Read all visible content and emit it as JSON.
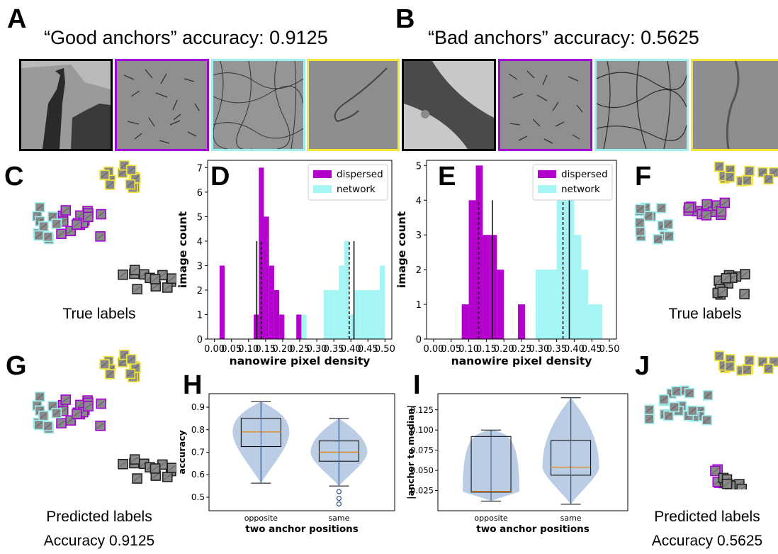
{
  "panels": {
    "A": {
      "letter": "A",
      "title": "“Good anchors” accuracy: 0.9125"
    },
    "B": {
      "letter": "B",
      "title": "“Bad anchors” accuracy: 0.5625"
    },
    "C": {
      "letter": "C",
      "caption": "True labels"
    },
    "F": {
      "letter": "F",
      "caption": "True labels"
    },
    "G": {
      "letter": "G",
      "caption": "Predicted labels",
      "caption2": "Accuracy 0.9125"
    },
    "J": {
      "letter": "J",
      "caption": "Predicted labels",
      "caption2": "Accuracy 0.5625"
    },
    "D": {
      "letter": "D"
    },
    "E": {
      "letter": "E"
    },
    "H": {
      "letter": "H"
    },
    "I": {
      "letter": "I"
    }
  },
  "colors": {
    "dispersed": "#b300cc",
    "network": "#a6f5f5",
    "black": "#000000",
    "purple_border": "#a300d8",
    "cyan_border": "#9ef0f0",
    "yellow_border": "#f3e63a",
    "violin": "#b4c6e2",
    "median": "#e08a1e"
  },
  "chart_data": [
    {
      "id": "D",
      "type": "bar",
      "xlabel": "nanowire pixel density",
      "ylabel": "image count",
      "xlim": [
        -0.02,
        0.52
      ],
      "ylim": [
        0,
        7.3
      ],
      "xticks": [
        "0.00",
        "0.05",
        "0.10",
        "0.15",
        "0.20",
        "0.25",
        "0.30",
        "0.35",
        "0.40",
        "0.45",
        "0.50"
      ],
      "xtick_values": [
        0,
        0.05,
        0.1,
        0.15,
        0.2,
        0.25,
        0.3,
        0.35,
        0.4,
        0.45,
        0.5
      ],
      "yticks": [
        "0",
        "1",
        "2",
        "3",
        "4",
        "5",
        "6",
        "7"
      ],
      "legend": "top-right",
      "series": [
        {
          "name": "dispersed",
          "bins": [
            [
              0.015,
              0.03,
              3
            ],
            [
              0.115,
              0.13,
              1
            ],
            [
              0.13,
              0.145,
              7
            ],
            [
              0.145,
              0.16,
              5
            ],
            [
              0.16,
              0.175,
              3
            ],
            [
              0.175,
              0.19,
              2
            ],
            [
              0.19,
              0.205,
              1
            ],
            [
              0.24,
              0.255,
              1
            ]
          ]
        },
        {
          "name": "network",
          "bins": [
            [
              0.255,
              0.27,
              1
            ],
            [
              0.32,
              0.335,
              2
            ],
            [
              0.335,
              0.35,
              2
            ],
            [
              0.35,
              0.365,
              2
            ],
            [
              0.365,
              0.38,
              3
            ],
            [
              0.38,
              0.395,
              4
            ],
            [
              0.395,
              0.41,
              1
            ],
            [
              0.41,
              0.425,
              2
            ],
            [
              0.425,
              0.44,
              2
            ],
            [
              0.44,
              0.455,
              2
            ],
            [
              0.455,
              0.47,
              2
            ],
            [
              0.47,
              0.485,
              2
            ],
            [
              0.485,
              0.5,
              3
            ]
          ]
        }
      ],
      "vlines": [
        {
          "x": 0.124,
          "y": 4,
          "style": "solid"
        },
        {
          "x": 0.137,
          "y": 4,
          "style": "dashed"
        },
        {
          "x": 0.395,
          "y": 4,
          "style": "dashed"
        },
        {
          "x": 0.409,
          "y": 4,
          "style": "solid"
        }
      ]
    },
    {
      "id": "E",
      "type": "bar",
      "xlabel": "nanowire pixel density",
      "ylabel": "image count",
      "xlim": [
        -0.02,
        0.52
      ],
      "ylim": [
        0,
        5.15
      ],
      "xticks": [
        "0.00",
        "0.05",
        "0.10",
        "0.15",
        "0.20",
        "0.25",
        "0.30",
        "0.35",
        "0.40",
        "0.45",
        "0.50"
      ],
      "xtick_values": [
        0,
        0.05,
        0.1,
        0.15,
        0.2,
        0.25,
        0.3,
        0.35,
        0.4,
        0.45,
        0.5
      ],
      "yticks": [
        "0",
        "1",
        "2",
        "3",
        "4",
        "5"
      ],
      "legend": "top-right",
      "series": [
        {
          "name": "dispersed",
          "bins": [
            [
              0.08,
              0.1,
              1
            ],
            [
              0.1,
              0.12,
              4
            ],
            [
              0.12,
              0.14,
              5
            ],
            [
              0.14,
              0.16,
              3
            ],
            [
              0.16,
              0.18,
              3
            ],
            [
              0.18,
              0.2,
              2
            ],
            [
              0.24,
              0.26,
              1
            ]
          ]
        },
        {
          "name": "network",
          "bins": [
            [
              0.29,
              0.32,
              2
            ],
            [
              0.32,
              0.35,
              2
            ],
            [
              0.35,
              0.365,
              4
            ],
            [
              0.365,
              0.38,
              4
            ],
            [
              0.38,
              0.4,
              5
            ],
            [
              0.4,
              0.42,
              3
            ],
            [
              0.42,
              0.44,
              2
            ],
            [
              0.44,
              0.465,
              1
            ],
            [
              0.465,
              0.48,
              1
            ]
          ]
        }
      ],
      "vlines": [
        {
          "x": 0.128,
          "y": 4,
          "style": "dashed"
        },
        {
          "x": 0.167,
          "y": 4,
          "style": "solid"
        },
        {
          "x": 0.368,
          "y": 4,
          "style": "dashed"
        },
        {
          "x": 0.386,
          "y": 4,
          "style": "solid"
        }
      ]
    },
    {
      "id": "H",
      "type": "violin",
      "xlabel": "two anchor positions",
      "ylabel": "accuracy",
      "categories": [
        "opposite",
        "same"
      ],
      "ylim": [
        0.44,
        0.96
      ],
      "yticks": [
        0.5,
        0.6,
        0.7,
        0.8,
        0.9
      ],
      "ytick_labels": [
        "0.5",
        "0.6",
        "0.7",
        "0.8",
        "0.9"
      ],
      "boxes": [
        {
          "min": 0.5625,
          "q1": 0.725,
          "median": 0.79,
          "q3": 0.85,
          "max": 0.925,
          "outliers": []
        },
        {
          "min": 0.55,
          "q1": 0.66,
          "median": 0.7,
          "q3": 0.75,
          "max": 0.85,
          "outliers": [
            0.525,
            0.495,
            0.47
          ]
        }
      ]
    },
    {
      "id": "I",
      "type": "violin",
      "xlabel": "two anchor positions",
      "ylabel": "|anchor to median|",
      "categories": [
        "opposite",
        "same"
      ],
      "ylim": [
        0.0,
        0.145
      ],
      "yticks": [
        0.025,
        0.05,
        0.075,
        0.1,
        0.125
      ],
      "ytick_labels": [
        "0.025",
        "0.050",
        "0.075",
        "0.100",
        "0.125"
      ],
      "boxes": [
        {
          "min": 0.012,
          "q1": 0.023,
          "median": 0.024,
          "q3": 0.092,
          "max": 0.1,
          "outliers": []
        },
        {
          "min": 0.008,
          "q1": 0.044,
          "median": 0.054,
          "q3": 0.087,
          "max": 0.14,
          "outliers": []
        }
      ]
    }
  ]
}
